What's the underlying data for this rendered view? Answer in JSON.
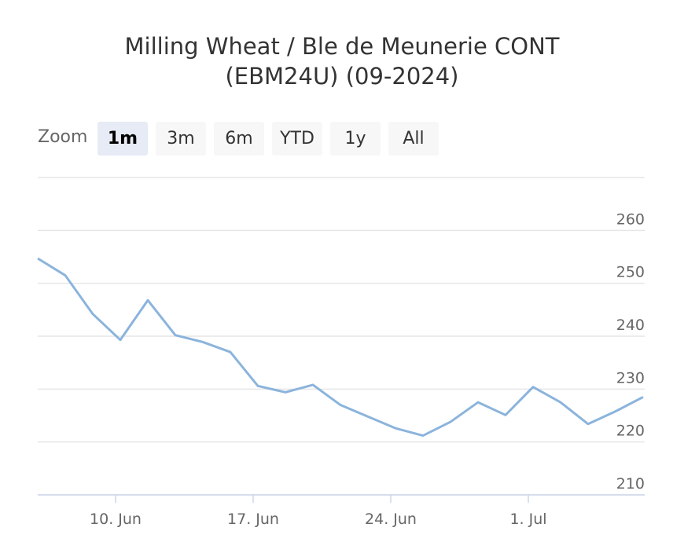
{
  "chart_data": {
    "type": "line",
    "title": "Milling Wheat / Ble de Meunerie CONT (EBM24U) (09-2024)",
    "zoom_label": "Zoom",
    "range_buttons": [
      "1m",
      "3m",
      "6m",
      "YTD",
      "1y",
      "All"
    ],
    "selected_button": 0,
    "categories": [
      null,
      null,
      null,
      "10. Jun",
      null,
      null,
      null,
      null,
      "17. Jun",
      null,
      null,
      null,
      null,
      "24. Jun",
      null,
      null,
      null,
      null,
      "1. Jul",
      null,
      null,
      null,
      null
    ],
    "series": [
      {
        "color": "#8bb4dc",
        "values": [
          254.7,
          251.5,
          244.2,
          239.3,
          246.8,
          240.2,
          238.9,
          237.0,
          230.6,
          229.4,
          230.8,
          227.0,
          224.8,
          222.6,
          221.2,
          223.8,
          227.5,
          225.1,
          230.4,
          227.5,
          223.4,
          225.8,
          228.5
        ]
      }
    ],
    "ylim": [
      210,
      270
    ],
    "yticks": [
      210,
      220,
      230,
      240,
      250,
      260
    ],
    "grid": true
  }
}
